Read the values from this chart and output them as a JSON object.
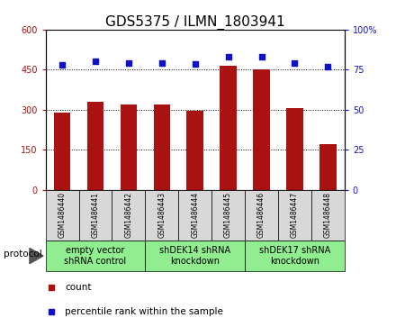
{
  "title": "GDS5375 / ILMN_1803941",
  "samples": [
    "GSM1486440",
    "GSM1486441",
    "GSM1486442",
    "GSM1486443",
    "GSM1486444",
    "GSM1486445",
    "GSM1486446",
    "GSM1486447",
    "GSM1486448"
  ],
  "counts": [
    290,
    330,
    320,
    320,
    295,
    465,
    450,
    305,
    170
  ],
  "percentiles": [
    78,
    80,
    79,
    79,
    78.5,
    83,
    83,
    79,
    77
  ],
  "ylim_left": [
    0,
    600
  ],
  "ylim_right": [
    0,
    100
  ],
  "yticks_left": [
    0,
    150,
    300,
    450,
    600
  ],
  "yticks_right": [
    0,
    25,
    50,
    75,
    100
  ],
  "bar_color": "#aa1111",
  "scatter_color": "#1111cc",
  "groups": [
    {
      "label": "empty vector\nshRNA control",
      "start": 0,
      "end": 3,
      "color": "#90ee90"
    },
    {
      "label": "shDEK14 shRNA\nknockdown",
      "start": 3,
      "end": 6,
      "color": "#90ee90"
    },
    {
      "label": "shDEK17 shRNA\nknockdown",
      "start": 6,
      "end": 9,
      "color": "#90ee90"
    }
  ],
  "protocol_label": "protocol",
  "legend_count_label": "count",
  "legend_pct_label": "percentile rank within the sample",
  "title_fontsize": 11,
  "tick_fontsize": 7,
  "sample_fontsize": 5.5,
  "group_fontsize": 7,
  "legend_fontsize": 7.5
}
